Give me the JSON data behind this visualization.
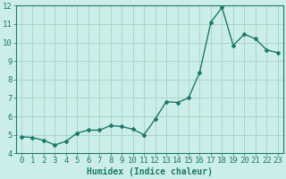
{
  "x": [
    0,
    1,
    2,
    3,
    4,
    5,
    6,
    7,
    8,
    9,
    10,
    11,
    12,
    13,
    14,
    15,
    16,
    17,
    18,
    19,
    20,
    21,
    22,
    23
  ],
  "y": [
    4.9,
    4.85,
    4.7,
    4.45,
    4.65,
    5.1,
    5.25,
    5.25,
    5.5,
    5.45,
    5.3,
    5.0,
    5.85,
    6.8,
    6.75,
    7.0,
    8.4,
    11.1,
    11.9,
    9.85,
    10.45,
    10.2,
    9.6,
    9.45
  ],
  "line_color": "#1a7a6a",
  "marker": "D",
  "marker_size": 2.0,
  "linewidth": 1.0,
  "bg_color": "#cceee8",
  "grid_color": "#aad4cc",
  "xlabel": "Humidex (Indice chaleur)",
  "ylim": [
    4,
    12
  ],
  "xlim": [
    -0.5,
    23.5
  ],
  "yticks": [
    4,
    5,
    6,
    7,
    8,
    9,
    10,
    11,
    12
  ],
  "xticks": [
    0,
    1,
    2,
    3,
    4,
    5,
    6,
    7,
    8,
    9,
    10,
    11,
    12,
    13,
    14,
    15,
    16,
    17,
    18,
    19,
    20,
    21,
    22,
    23
  ],
  "xlabel_fontsize": 7,
  "tick_fontsize": 6.5
}
